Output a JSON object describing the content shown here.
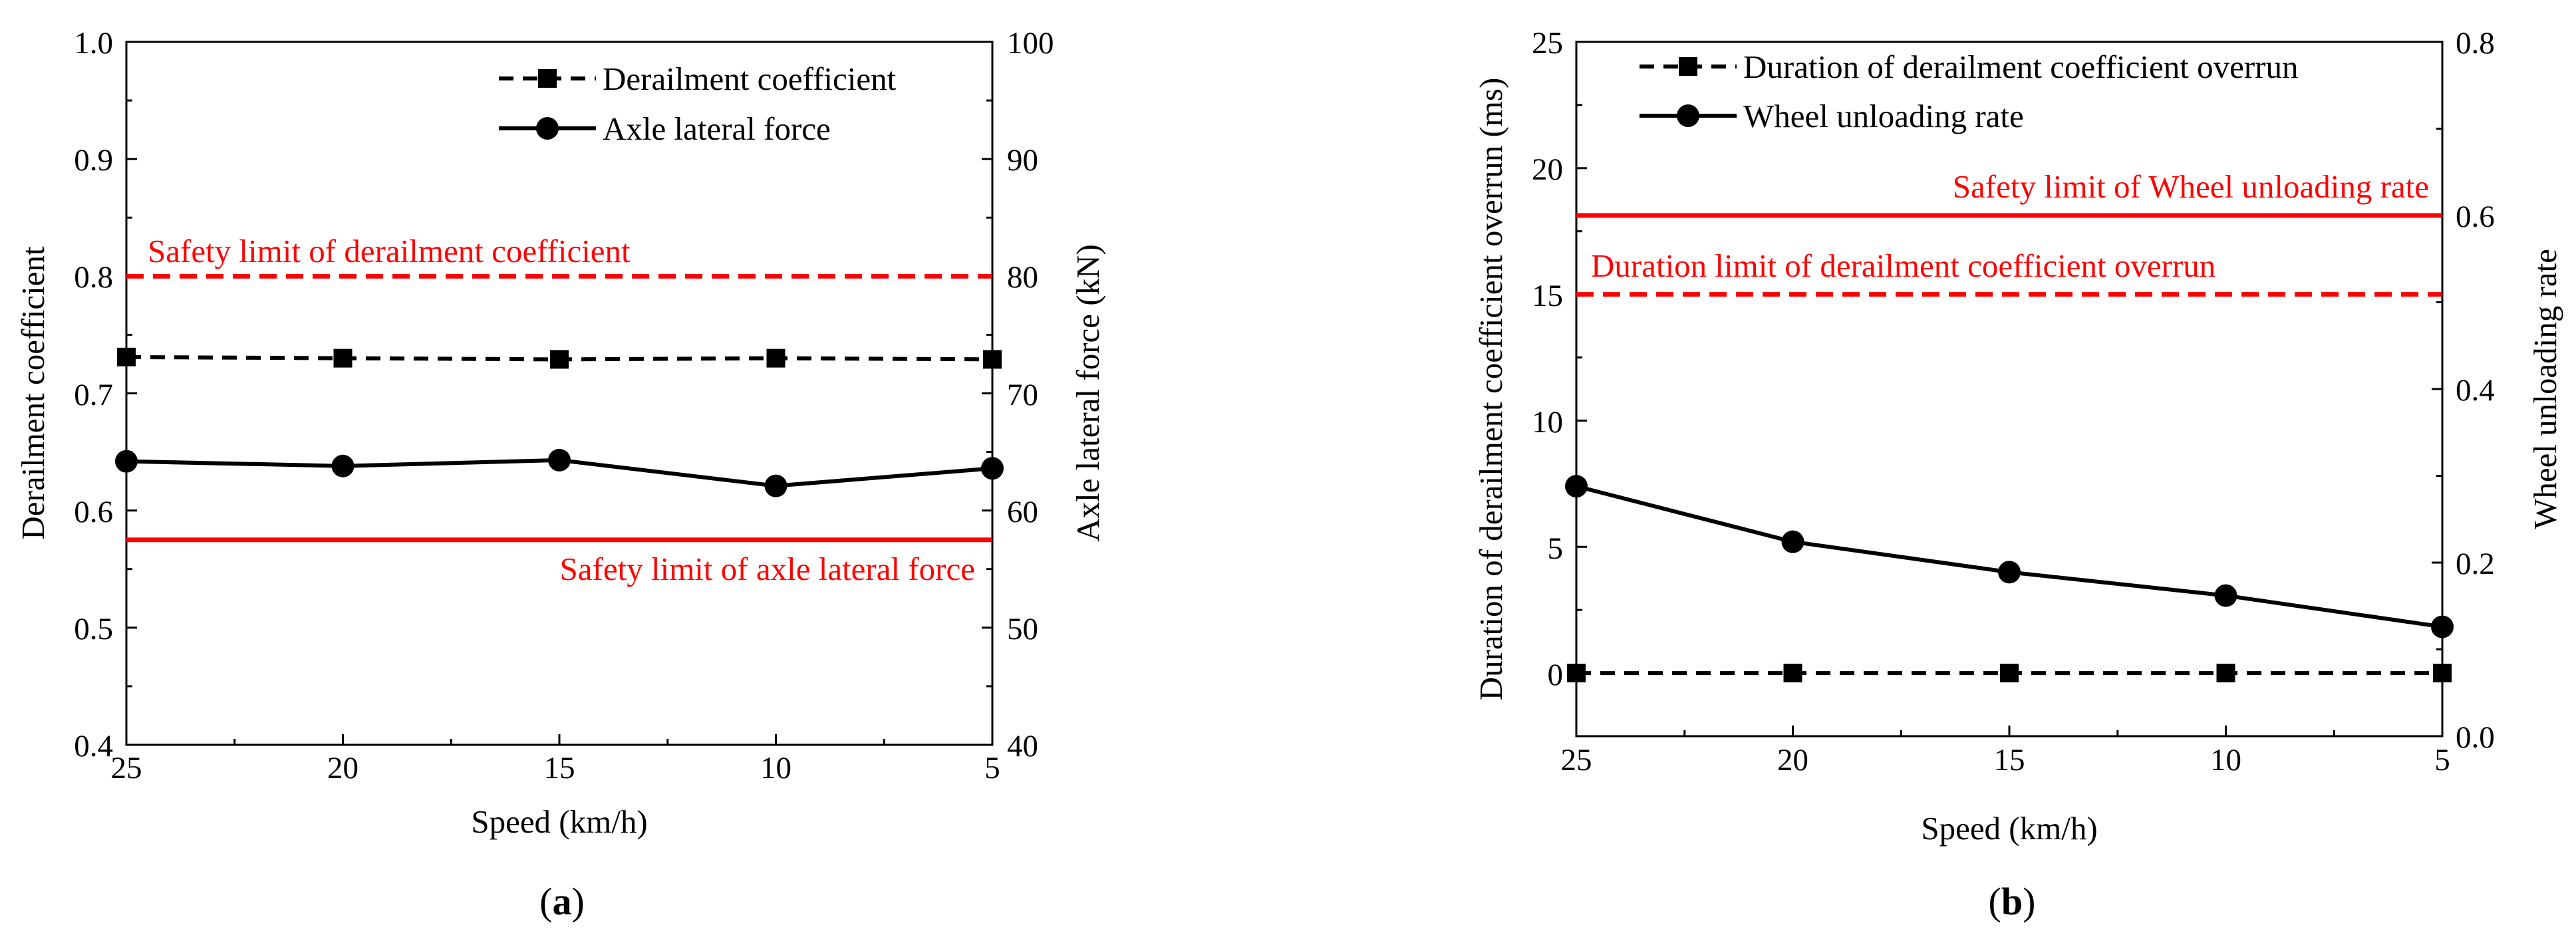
{
  "chart_data": [
    {
      "type": "line",
      "panel_label": {
        "open": "(",
        "letter": "a",
        "close": ")"
      },
      "x": [
        25,
        20,
        15,
        10,
        5
      ],
      "xlabel": "Speed (km/h)",
      "xticks": [
        "25",
        "20",
        "15",
        "10",
        "5"
      ],
      "xlim": [
        25,
        5
      ],
      "ylabel_left": "Derailment coefficient",
      "ylim_left": [
        0.4,
        1.0
      ],
      "yticks_left": [
        "0.4",
        "0.5",
        "0.6",
        "0.7",
        "0.8",
        "0.9",
        "1.0"
      ],
      "ylabel_right": "Axle lateral force (kN)",
      "ylim_right": [
        40,
        100
      ],
      "yticks_right": [
        "40",
        "50",
        "60",
        "70",
        "80",
        "90",
        "100"
      ],
      "legend": [
        "Derailment coefficient",
        "Axle lateral force"
      ],
      "series": [
        {
          "name": "Derailment coefficient",
          "axis": "left",
          "marker": "square",
          "style": "dashed",
          "color": "#000000",
          "values": [
            0.731,
            0.73,
            0.729,
            0.73,
            0.729
          ]
        },
        {
          "name": "Axle lateral force",
          "axis": "right",
          "marker": "circle",
          "style": "solid",
          "color": "#000000",
          "values": [
            64.2,
            63.8,
            64.3,
            62.1,
            63.6
          ]
        }
      ],
      "limits": [
        {
          "label": "Safety limit of derailment coefficient",
          "axis": "left",
          "value": 0.8,
          "style": "dashed",
          "color": "#ff0000"
        },
        {
          "label": "Safety limit of axle lateral force",
          "axis": "right",
          "value": 57.5,
          "style": "solid",
          "color": "#ff0000"
        }
      ]
    },
    {
      "type": "line",
      "panel_label": {
        "open": "(",
        "letter": "b",
        "close": ")"
      },
      "x": [
        25,
        20,
        15,
        10,
        5
      ],
      "xlabel": "Speed (km/h)",
      "xticks": [
        "25",
        "20",
        "15",
        "10",
        "5"
      ],
      "xlim": [
        25,
        5
      ],
      "ylabel_left": "Duration of derailment coefficient overrun (ms)",
      "ylim_left": [
        -2.5,
        25
      ],
      "yticks_left": [
        "0",
        "5",
        "10",
        "15",
        "20",
        "25"
      ],
      "ylabel_right": "Wheel unloading rate",
      "ylim_right": [
        0.0,
        0.8
      ],
      "yticks_right": [
        "0.0",
        "0.2",
        "0.4",
        "0.6",
        "0.8"
      ],
      "legend": [
        "Duration of derailment coefficient overrun",
        "Wheel unloading rate"
      ],
      "series": [
        {
          "name": "Duration of derailment coefficient overrun",
          "axis": "left",
          "marker": "square",
          "style": "dashed",
          "color": "#000000",
          "values": [
            0,
            0,
            0,
            0,
            0
          ]
        },
        {
          "name": "Wheel unloading rate",
          "axis": "right",
          "marker": "circle",
          "style": "solid",
          "color": "#000000",
          "values": [
            0.288,
            0.224,
            0.189,
            0.162,
            0.126
          ]
        }
      ],
      "limits": [
        {
          "label": "Safety limit of Wheel unloading rate",
          "axis": "right",
          "value": 0.6,
          "style": "solid",
          "color": "#ff0000"
        },
        {
          "label": "Duration limit of derailment coefficient overrun",
          "axis": "left",
          "value": 15,
          "style": "dashed",
          "color": "#ff0000"
        }
      ]
    }
  ]
}
